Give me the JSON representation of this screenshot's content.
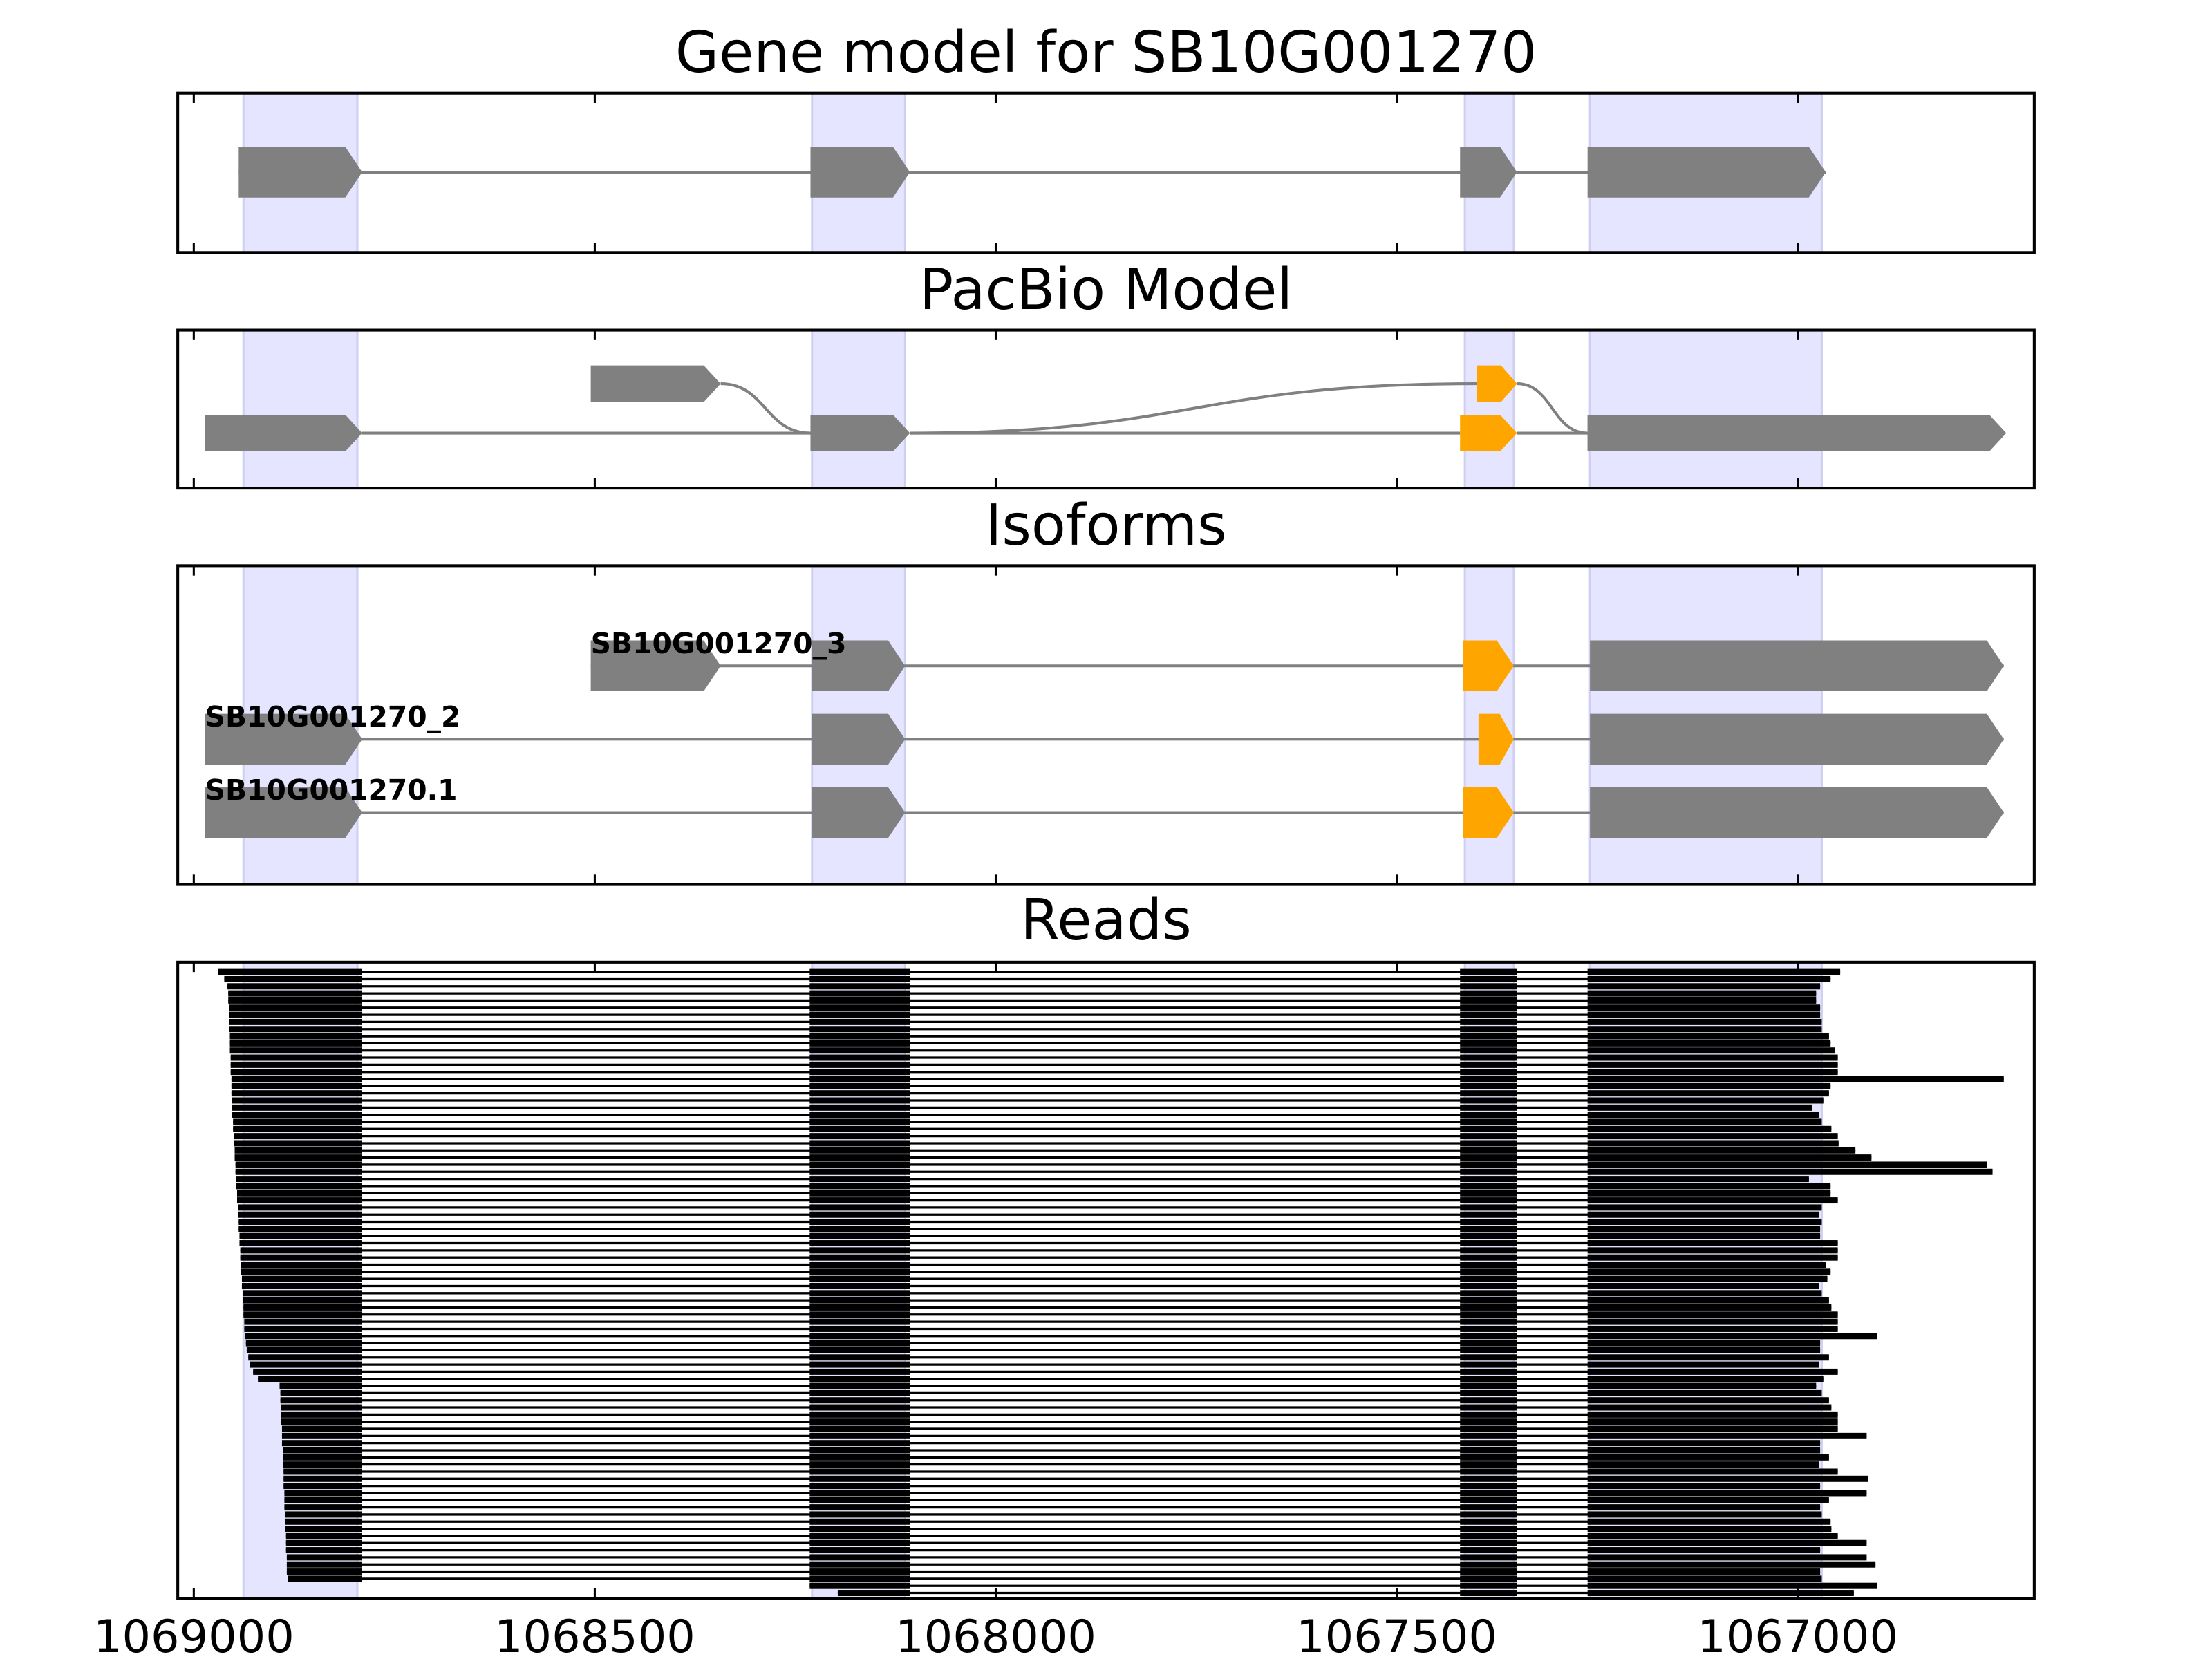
{
  "chart_data": [
    {
      "type": "gene",
      "title": "Gene model for SB10G001270",
      "xlim": [
        1069020,
        1066705
      ],
      "xticks": [
        1069000,
        1068500,
        1068000,
        1067500,
        1067000
      ],
      "regions": [
        [
          1068938,
          1068796
        ],
        [
          1068229,
          1068113
        ],
        [
          1067415,
          1067354
        ],
        [
          1067259,
          1066970
        ]
      ],
      "transcripts": [
        {
          "exons": [
            [
              1068944,
              1068790
            ],
            [
              1068231,
              1068107
            ],
            [
              1067421,
              1067350
            ],
            [
              1067262,
              1066965
            ]
          ],
          "exon_colors": [
            "#808080",
            "#808080",
            "#808080",
            "#808080"
          ]
        }
      ]
    },
    {
      "type": "pacbio",
      "title": "PacBio Model",
      "xlim": [
        1069020,
        1066705
      ],
      "xticks": [
        1069000,
        1068500,
        1068000,
        1067500,
        1067000
      ],
      "regions": [
        [
          1068938,
          1068796
        ],
        [
          1068229,
          1068113
        ],
        [
          1067415,
          1067354
        ],
        [
          1067259,
          1066970
        ]
      ],
      "transcripts": [
        {
          "exons": [
            [
              1068505,
              1068343
            ],
            [
              1068231,
              1068107
            ],
            [
              1067400,
              1067350
            ],
            [
              1067262,
              1066740
            ]
          ],
          "exon_rows": [
            0,
            1,
            0,
            1
          ],
          "exon_colors": [
            "#808080",
            "#808080",
            "#ffa500",
            "#808080"
          ]
        },
        {
          "exons": [
            [
              1068986,
              1068790
            ],
            [
              1068231,
              1068107
            ],
            [
              1067421,
              1067350
            ],
            [
              1067262,
              1066740
            ]
          ],
          "exon_rows": [
            1,
            1,
            1,
            1
          ],
          "exon_colors": [
            "#808080",
            "#808080",
            "#ffa500",
            "#808080"
          ]
        }
      ]
    },
    {
      "type": "isoforms",
      "title": "Isoforms",
      "xlim": [
        1069020,
        1066705
      ],
      "xticks": [
        1069000,
        1068500,
        1068000,
        1067500,
        1067000
      ],
      "regions": [
        [
          1068938,
          1068796
        ],
        [
          1068229,
          1068113
        ],
        [
          1067415,
          1067354
        ],
        [
          1067259,
          1066970
        ]
      ],
      "transcripts": [
        {
          "name": "SB10G001270_3",
          "exons": [
            [
              1068505,
              1068343
            ],
            [
              1068229,
              1068113
            ],
            [
              1067417,
              1067354
            ],
            [
              1067259,
              1066743
            ]
          ],
          "exon_colors": [
            "#808080",
            "#808080",
            "#ffa500",
            "#808080"
          ]
        },
        {
          "name": "SB10G001270_2",
          "exons": [
            [
              1068986,
              1068790
            ],
            [
              1068229,
              1068113
            ],
            [
              1067398,
              1067354
            ],
            [
              1067259,
              1066743
            ]
          ],
          "exon_colors": [
            "#808080",
            "#808080",
            "#ffa500",
            "#808080"
          ]
        },
        {
          "name": "SB10G001270.1",
          "exons": [
            [
              1068986,
              1068790
            ],
            [
              1068229,
              1068113
            ],
            [
              1067417,
              1067354
            ],
            [
              1067259,
              1066743
            ]
          ],
          "exon_colors": [
            "#808080",
            "#808080",
            "#ffa500",
            "#808080"
          ]
        }
      ]
    },
    {
      "type": "reads",
      "title": "Reads",
      "tick_labels": true,
      "color": "#000000",
      "xlim": [
        1069020,
        1066705
      ],
      "xticks": [
        1069000,
        1068500,
        1068000,
        1067500,
        1067000
      ],
      "regions": [
        [
          1068938,
          1068796
        ],
        [
          1068229,
          1068113
        ],
        [
          1067415,
          1067354
        ],
        [
          1067259,
          1066970
        ]
      ],
      "introns": [
        [
          1068790,
          1068232
        ],
        [
          1068107,
          1067421
        ],
        [
          1067350,
          1067262
        ]
      ],
      "starts": [
        1068970,
        1068962,
        1068958,
        1068957,
        1068957,
        1068956,
        1068956,
        1068956,
        1068956,
        1068955,
        1068955,
        1068955,
        1068954,
        1068954,
        1068954,
        1068953,
        1068953,
        1068953,
        1068952,
        1068952,
        1068952,
        1068951,
        1068951,
        1068950,
        1068950,
        1068949,
        1068949,
        1068948,
        1068948,
        1068947,
        1068947,
        1068946,
        1068946,
        1068945,
        1068945,
        1068944,
        1068944,
        1068943,
        1068943,
        1068942,
        1068942,
        1068941,
        1068941,
        1068940,
        1068940,
        1068939,
        1068939,
        1068938,
        1068938,
        1068937,
        1068937,
        1068936,
        1068935,
        1068934,
        1068932,
        1068930,
        1068926,
        1068920,
        1068893,
        1068892,
        1068892,
        1068891,
        1068891,
        1068891,
        1068890,
        1068890,
        1068890,
        1068889,
        1068889,
        1068889,
        1068888,
        1068888,
        1068888,
        1068887,
        1068887,
        1068887,
        1068886,
        1068886,
        1068886,
        1068885,
        1068885,
        1068885,
        1068884,
        1068884,
        1068884,
        1068883,
        1068232,
        1068197
      ],
      "ends": [
        1066947,
        1066959,
        1066972,
        1066977,
        1066977,
        1066972,
        1066972,
        1066970,
        1066970,
        1066961,
        1066959,
        1066954,
        1066950,
        1066950,
        1066950,
        1066743,
        1066959,
        1066961,
        1066968,
        1066982,
        1066973,
        1066970,
        1066958,
        1066950,
        1066949,
        1066928,
        1066908,
        1066764,
        1066757,
        1066986,
        1066959,
        1066959,
        1066950,
        1066970,
        1066973,
        1066970,
        1066972,
        1066972,
        1066950,
        1066950,
        1066950,
        1066965,
        1066959,
        1066963,
        1066973,
        1066970,
        1066961,
        1066958,
        1066950,
        1066950,
        1066950,
        1066901,
        1066972,
        1066972,
        1066961,
        1066973,
        1066950,
        1066968,
        1066977,
        1066970,
        1066961,
        1066958,
        1066950,
        1066950,
        1066950,
        1066914,
        1066972,
        1066972,
        1066961,
        1066973,
        1066950,
        1066912,
        1066972,
        1066914,
        1066961,
        1066972,
        1066970,
        1066959,
        1066958,
        1066950,
        1066914,
        1066972,
        1066914,
        1066903,
        1066972,
        1066970,
        1066901,
        1066930
      ]
    }
  ]
}
